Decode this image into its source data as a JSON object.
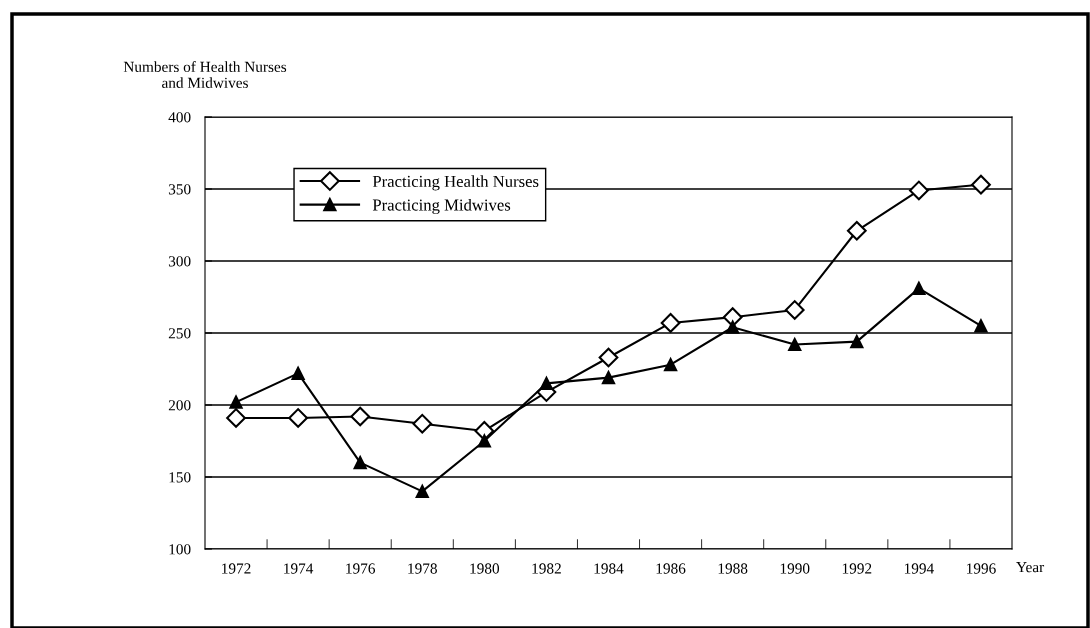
{
  "chart_data": {
    "type": "line",
    "xlabel": "Year",
    "ylabel": "Numbers of Health Nurses\nand Midwives",
    "categories": [
      "1972",
      "1974",
      "1976",
      "1978",
      "1980",
      "1982",
      "1984",
      "1986",
      "1988",
      "1990",
      "1992",
      "1994",
      "1996"
    ],
    "series": [
      {
        "name": "Practicing Health Nurses",
        "color": "#000000",
        "marker": "diamond",
        "values": [
          191,
          191,
          192,
          187,
          182,
          209,
          233,
          257,
          261,
          266,
          321,
          349,
          353
        ]
      },
      {
        "name": "Practicing Midwives",
        "color": "#000000",
        "marker": "triangle",
        "values": [
          202,
          222,
          160,
          140,
          175,
          215,
          219,
          228,
          254,
          242,
          244,
          281,
          255
        ]
      }
    ],
    "ylim": [
      100,
      400
    ],
    "yticks": [
      100,
      150,
      200,
      250,
      300,
      350,
      400
    ],
    "grid": "y",
    "legend": "top left",
    "line_style": "solid"
  }
}
